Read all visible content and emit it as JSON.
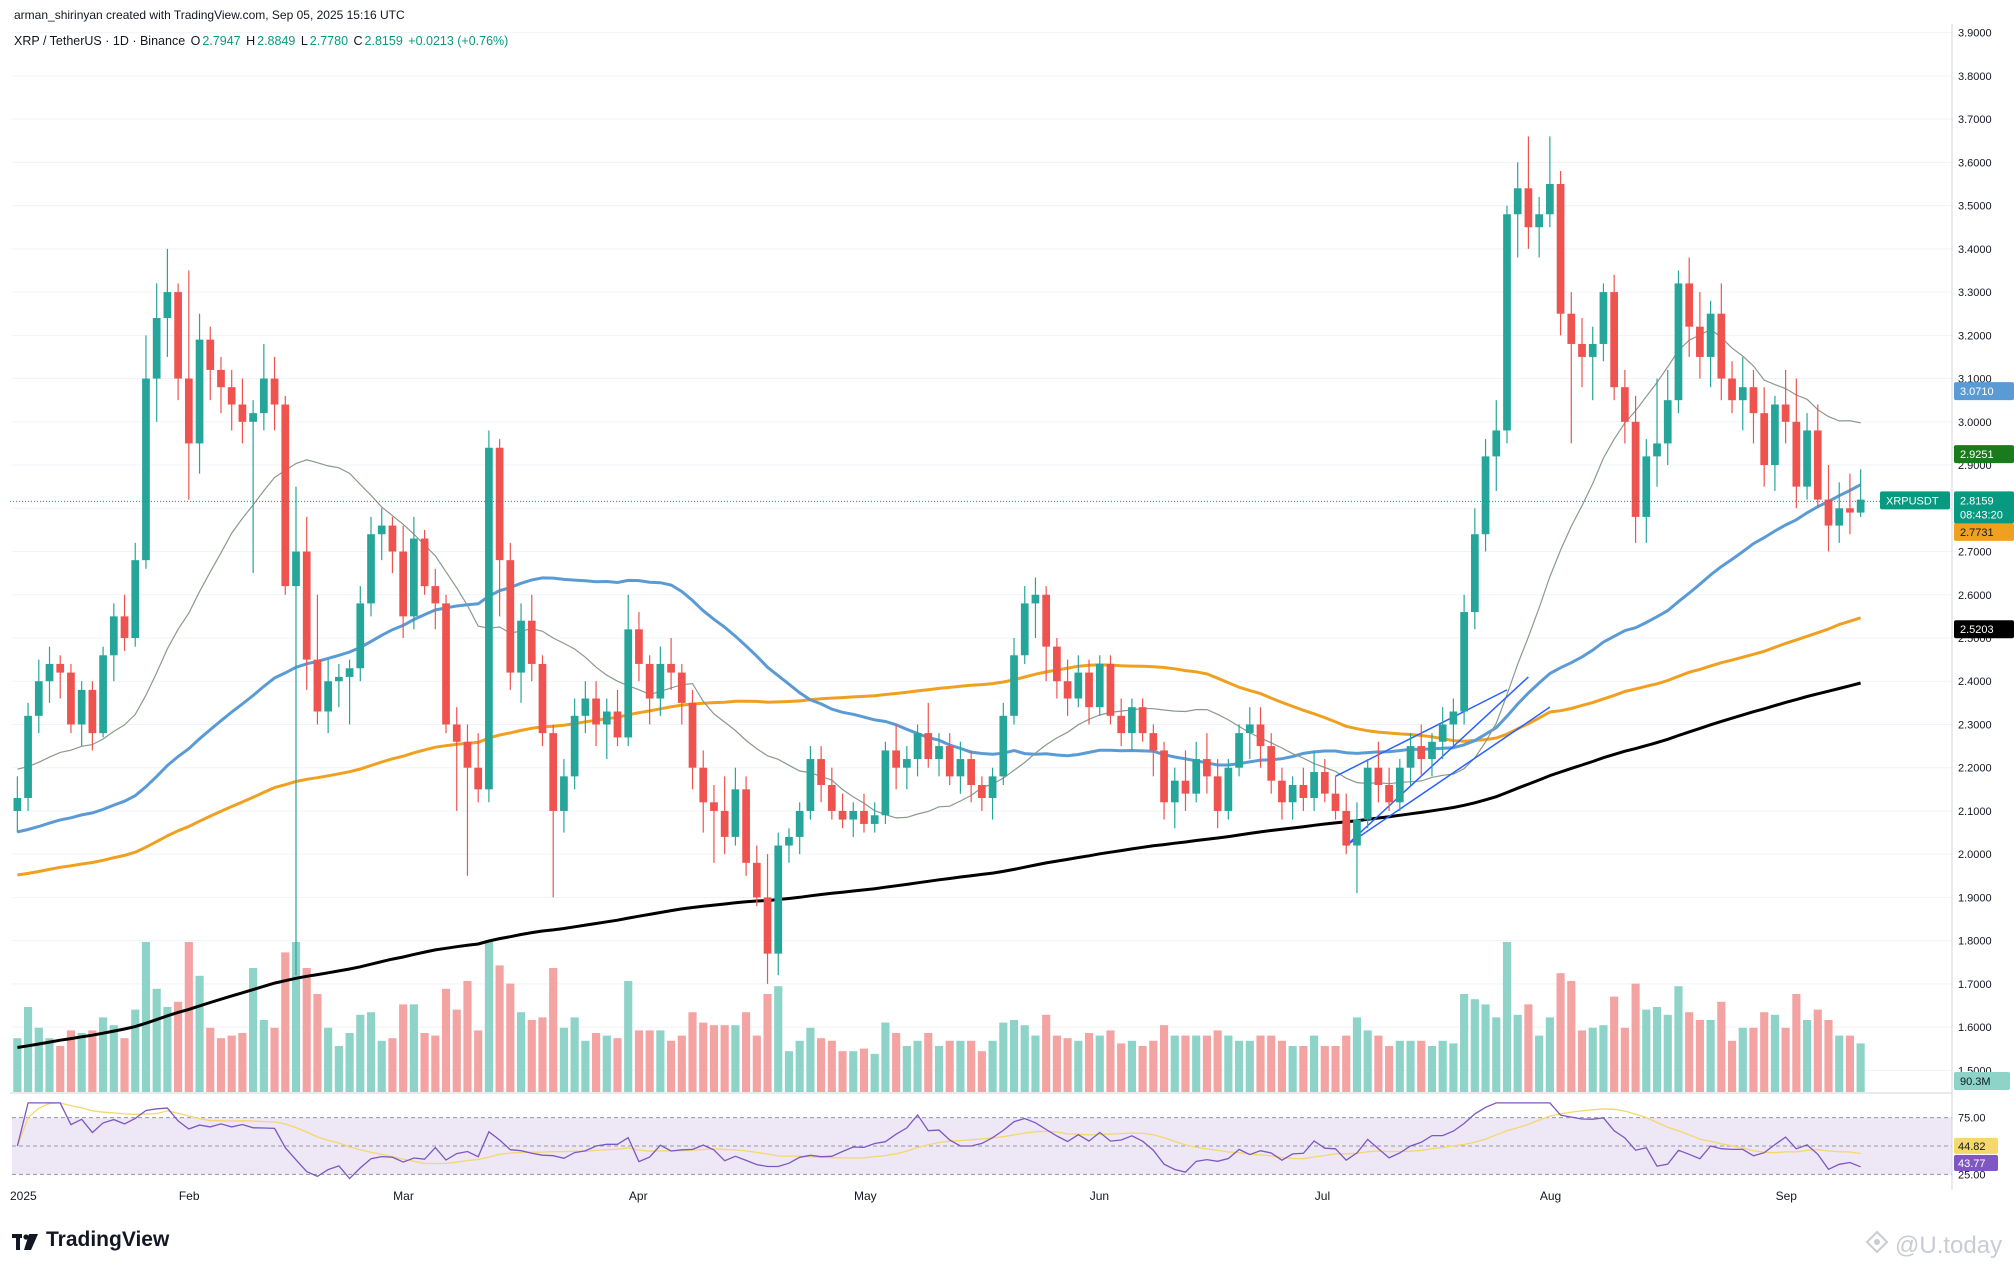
{
  "header": {
    "created_by": "arman_shirinyan created with TradingView.com, Sep 05, 2025 15:16 UTC"
  },
  "legend": {
    "symbol": "XRP / TetherUS · 1D · Binance",
    "open_label": "O",
    "open": "2.7947",
    "high_label": "H",
    "high": "2.8849",
    "low_label": "L",
    "low": "2.7780",
    "close_label": "C",
    "close": "2.8159",
    "change": "+0.0213 (+0.76%)"
  },
  "colors": {
    "up": "#089981",
    "down": "#f23645",
    "up_body": "#26a69a",
    "down_body": "#ef5350",
    "vol_up": "#8dd3c7",
    "vol_down": "#f4a3a3",
    "ma_blue": "#5b9bd5",
    "ma_orange": "#f0a020",
    "ma_black": "#000000",
    "ma_thin": "#8a9a8a",
    "rsi": "#7e57c2",
    "rsi_ma": "#f5d76e",
    "rsi_band": "#ede7f6"
  },
  "footer": {
    "brand": "TradingView",
    "watermark": "@U.today"
  },
  "price_tags": {
    "ma_blue": "3.0710",
    "ma_thin": "2.9251",
    "symbol": "XRPUSDT",
    "last": "2.8159",
    "countdown": "08:43:20",
    "ma_orange": "2.7731",
    "ma_black": "2.5203",
    "volume": "90.3M",
    "rsi_ma": "44.82",
    "rsi": "43.77"
  },
  "chart_data": {
    "type": "candlestick",
    "symbol": "XRP / TetherUS",
    "interval": "1D",
    "exchange": "Binance",
    "price_axis": {
      "range": [
        1.45,
        3.92
      ],
      "ticks": [
        "3.9000",
        "3.8000",
        "3.7000",
        "3.6000",
        "3.5000",
        "3.4000",
        "3.3000",
        "3.2000",
        "3.1000",
        "3.0000",
        "2.9000",
        "2.8000",
        "2.7000",
        "2.6000",
        "2.5000",
        "2.4000",
        "2.3000",
        "2.2000",
        "2.1000",
        "2.0000",
        "1.9000",
        "1.8000",
        "1.7000",
        "1.6000",
        "1.5000"
      ]
    },
    "rsi_axis": {
      "ticks": [
        "75.00",
        "25.00"
      ]
    },
    "date_ticks": [
      "2025",
      "Feb",
      "Mar",
      "Apr",
      "May",
      "Jun",
      "Jul",
      "Aug",
      "Sep"
    ],
    "candles": [
      [
        2.1,
        2.18,
        2.05,
        2.13
      ],
      [
        2.13,
        2.35,
        2.1,
        2.32
      ],
      [
        2.32,
        2.45,
        2.28,
        2.4
      ],
      [
        2.4,
        2.48,
        2.35,
        2.44
      ],
      [
        2.44,
        2.46,
        2.36,
        2.42
      ],
      [
        2.42,
        2.44,
        2.28,
        2.3
      ],
      [
        2.3,
        2.4,
        2.25,
        2.38
      ],
      [
        2.38,
        2.4,
        2.24,
        2.28
      ],
      [
        2.28,
        2.48,
        2.27,
        2.46
      ],
      [
        2.46,
        2.58,
        2.4,
        2.55
      ],
      [
        2.55,
        2.6,
        2.47,
        2.5
      ],
      [
        2.5,
        2.72,
        2.48,
        2.68
      ],
      [
        2.68,
        3.2,
        2.66,
        3.1
      ],
      [
        3.1,
        3.32,
        3.0,
        3.24
      ],
      [
        3.24,
        3.4,
        3.15,
        3.3
      ],
      [
        3.3,
        3.32,
        3.05,
        3.1
      ],
      [
        3.1,
        3.35,
        2.82,
        2.95
      ],
      [
        2.95,
        3.25,
        2.88,
        3.19
      ],
      [
        3.19,
        3.22,
        3.05,
        3.12
      ],
      [
        3.12,
        3.15,
        3.02,
        3.08
      ],
      [
        3.08,
        3.12,
        2.98,
        3.04
      ],
      [
        3.04,
        3.1,
        2.95,
        3.0
      ],
      [
        3.0,
        3.05,
        2.65,
        3.02
      ],
      [
        3.02,
        3.18,
        2.98,
        3.1
      ],
      [
        3.1,
        3.15,
        2.98,
        3.04
      ],
      [
        3.04,
        3.06,
        2.6,
        2.62
      ],
      [
        2.62,
        2.85,
        1.72,
        2.7
      ],
      [
        2.7,
        2.78,
        2.38,
        2.45
      ],
      [
        2.45,
        2.6,
        2.3,
        2.33
      ],
      [
        2.33,
        2.45,
        2.28,
        2.4
      ],
      [
        2.4,
        2.44,
        2.34,
        2.41
      ],
      [
        2.41,
        2.45,
        2.3,
        2.43
      ],
      [
        2.43,
        2.62,
        2.4,
        2.58
      ],
      [
        2.58,
        2.78,
        2.55,
        2.74
      ],
      [
        2.74,
        2.8,
        2.68,
        2.76
      ],
      [
        2.76,
        2.78,
        2.65,
        2.7
      ],
      [
        2.7,
        2.76,
        2.5,
        2.55
      ],
      [
        2.55,
        2.78,
        2.52,
        2.73
      ],
      [
        2.73,
        2.75,
        2.6,
        2.62
      ],
      [
        2.62,
        2.66,
        2.52,
        2.58
      ],
      [
        2.58,
        2.6,
        2.28,
        2.3
      ],
      [
        2.3,
        2.34,
        2.1,
        2.26
      ],
      [
        2.26,
        2.3,
        1.95,
        2.2
      ],
      [
        2.2,
        2.28,
        2.12,
        2.15
      ],
      [
        2.15,
        2.98,
        2.12,
        2.94
      ],
      [
        2.94,
        2.96,
        2.55,
        2.68
      ],
      [
        2.68,
        2.72,
        2.38,
        2.42
      ],
      [
        2.42,
        2.58,
        2.35,
        2.54
      ],
      [
        2.54,
        2.6,
        2.4,
        2.44
      ],
      [
        2.44,
        2.46,
        2.25,
        2.28
      ],
      [
        2.28,
        2.3,
        1.9,
        2.1
      ],
      [
        2.1,
        2.22,
        2.05,
        2.18
      ],
      [
        2.18,
        2.36,
        2.15,
        2.32
      ],
      [
        2.32,
        2.4,
        2.28,
        2.36
      ],
      [
        2.36,
        2.4,
        2.25,
        2.3
      ],
      [
        2.3,
        2.36,
        2.22,
        2.33
      ],
      [
        2.33,
        2.38,
        2.25,
        2.27
      ],
      [
        2.27,
        2.6,
        2.25,
        2.52
      ],
      [
        2.52,
        2.56,
        2.4,
        2.44
      ],
      [
        2.44,
        2.46,
        2.3,
        2.36
      ],
      [
        2.36,
        2.48,
        2.32,
        2.44
      ],
      [
        2.44,
        2.5,
        2.38,
        2.42
      ],
      [
        2.42,
        2.44,
        2.3,
        2.35
      ],
      [
        2.35,
        2.38,
        2.15,
        2.2
      ],
      [
        2.2,
        2.24,
        2.05,
        2.12
      ],
      [
        2.12,
        2.16,
        1.98,
        2.1
      ],
      [
        2.1,
        2.18,
        2.0,
        2.04
      ],
      [
        2.04,
        2.2,
        2.02,
        2.15
      ],
      [
        2.15,
        2.18,
        1.95,
        1.98
      ],
      [
        1.98,
        2.02,
        1.88,
        1.9
      ],
      [
        1.9,
        2.0,
        1.7,
        1.77
      ],
      [
        1.77,
        2.05,
        1.72,
        2.02
      ],
      [
        2.02,
        2.06,
        1.98,
        2.04
      ],
      [
        2.04,
        2.12,
        2.0,
        2.1
      ],
      [
        2.1,
        2.25,
        2.08,
        2.22
      ],
      [
        2.22,
        2.25,
        2.12,
        2.16
      ],
      [
        2.16,
        2.2,
        2.08,
        2.1
      ],
      [
        2.1,
        2.14,
        2.06,
        2.08
      ],
      [
        2.08,
        2.12,
        2.04,
        2.1
      ],
      [
        2.1,
        2.14,
        2.05,
        2.07
      ],
      [
        2.07,
        2.12,
        2.05,
        2.09
      ],
      [
        2.09,
        2.26,
        2.07,
        2.24
      ],
      [
        2.24,
        2.3,
        2.15,
        2.2
      ],
      [
        2.2,
        2.25,
        2.15,
        2.22
      ],
      [
        2.22,
        2.3,
        2.18,
        2.28
      ],
      [
        2.28,
        2.35,
        2.2,
        2.22
      ],
      [
        2.22,
        2.28,
        2.18,
        2.25
      ],
      [
        2.25,
        2.28,
        2.16,
        2.18
      ],
      [
        2.18,
        2.26,
        2.14,
        2.22
      ],
      [
        2.22,
        2.24,
        2.12,
        2.16
      ],
      [
        2.16,
        2.18,
        2.1,
        2.13
      ],
      [
        2.13,
        2.2,
        2.08,
        2.18
      ],
      [
        2.18,
        2.35,
        2.16,
        2.32
      ],
      [
        2.32,
        2.5,
        2.3,
        2.46
      ],
      [
        2.46,
        2.62,
        2.44,
        2.58
      ],
      [
        2.58,
        2.64,
        2.5,
        2.6
      ],
      [
        2.6,
        2.62,
        2.4,
        2.48
      ],
      [
        2.48,
        2.5,
        2.36,
        2.4
      ],
      [
        2.4,
        2.45,
        2.32,
        2.36
      ],
      [
        2.36,
        2.46,
        2.34,
        2.42
      ],
      [
        2.42,
        2.45,
        2.3,
        2.34
      ],
      [
        2.34,
        2.46,
        2.32,
        2.44
      ],
      [
        2.44,
        2.46,
        2.3,
        2.32
      ],
      [
        2.32,
        2.36,
        2.25,
        2.28
      ],
      [
        2.28,
        2.36,
        2.24,
        2.34
      ],
      [
        2.34,
        2.36,
        2.26,
        2.28
      ],
      [
        2.28,
        2.3,
        2.18,
        2.24
      ],
      [
        2.24,
        2.26,
        2.08,
        2.12
      ],
      [
        2.12,
        2.2,
        2.06,
        2.17
      ],
      [
        2.17,
        2.24,
        2.1,
        2.14
      ],
      [
        2.14,
        2.26,
        2.12,
        2.22
      ],
      [
        2.22,
        2.28,
        2.14,
        2.18
      ],
      [
        2.18,
        2.22,
        2.06,
        2.1
      ],
      [
        2.1,
        2.22,
        2.08,
        2.2
      ],
      [
        2.2,
        2.3,
        2.18,
        2.28
      ],
      [
        2.28,
        2.34,
        2.22,
        2.3
      ],
      [
        2.3,
        2.34,
        2.2,
        2.25
      ],
      [
        2.25,
        2.28,
        2.14,
        2.17
      ],
      [
        2.17,
        2.2,
        2.08,
        2.12
      ],
      [
        2.12,
        2.18,
        2.08,
        2.16
      ],
      [
        2.16,
        2.2,
        2.1,
        2.13
      ],
      [
        2.13,
        2.24,
        2.1,
        2.19
      ],
      [
        2.19,
        2.22,
        2.12,
        2.14
      ],
      [
        2.14,
        2.18,
        2.08,
        2.1
      ],
      [
        2.1,
        2.14,
        2.0,
        2.02
      ],
      [
        2.02,
        2.12,
        1.91,
        2.08
      ],
      [
        2.08,
        2.22,
        2.06,
        2.2
      ],
      [
        2.2,
        2.26,
        2.12,
        2.16
      ],
      [
        2.16,
        2.2,
        2.1,
        2.12
      ],
      [
        2.12,
        2.22,
        2.1,
        2.2
      ],
      [
        2.2,
        2.28,
        2.16,
        2.25
      ],
      [
        2.25,
        2.3,
        2.18,
        2.22
      ],
      [
        2.22,
        2.28,
        2.18,
        2.26
      ],
      [
        2.26,
        2.34,
        2.22,
        2.3
      ],
      [
        2.3,
        2.36,
        2.25,
        2.33
      ],
      [
        2.33,
        2.6,
        2.3,
        2.56
      ],
      [
        2.56,
        2.8,
        2.52,
        2.74
      ],
      [
        2.74,
        2.96,
        2.7,
        2.92
      ],
      [
        2.92,
        3.05,
        2.84,
        2.98
      ],
      [
        2.98,
        3.5,
        2.95,
        3.48
      ],
      [
        3.48,
        3.6,
        3.38,
        3.54
      ],
      [
        3.54,
        3.66,
        3.4,
        3.45
      ],
      [
        3.45,
        3.52,
        3.38,
        3.48
      ],
      [
        3.48,
        3.66,
        3.45,
        3.55
      ],
      [
        3.55,
        3.58,
        3.2,
        3.25
      ],
      [
        3.25,
        3.3,
        2.95,
        3.18
      ],
      [
        3.18,
        3.24,
        3.08,
        3.15
      ],
      [
        3.15,
        3.22,
        3.05,
        3.18
      ],
      [
        3.18,
        3.32,
        3.14,
        3.3
      ],
      [
        3.3,
        3.34,
        3.05,
        3.08
      ],
      [
        3.08,
        3.12,
        2.95,
        3.0
      ],
      [
        3.0,
        3.06,
        2.72,
        2.78
      ],
      [
        2.78,
        2.96,
        2.72,
        2.92
      ],
      [
        2.92,
        3.1,
        2.85,
        2.95
      ],
      [
        2.95,
        3.12,
        2.9,
        3.05
      ],
      [
        3.05,
        3.35,
        3.02,
        3.32
      ],
      [
        3.32,
        3.38,
        3.15,
        3.22
      ],
      [
        3.22,
        3.3,
        3.1,
        3.15
      ],
      [
        3.15,
        3.28,
        3.08,
        3.25
      ],
      [
        3.25,
        3.32,
        3.05,
        3.1
      ],
      [
        3.1,
        3.14,
        3.02,
        3.05
      ],
      [
        3.05,
        3.15,
        2.98,
        3.08
      ],
      [
        3.08,
        3.12,
        2.95,
        3.02
      ],
      [
        3.02,
        3.08,
        2.85,
        2.9
      ],
      [
        2.9,
        3.06,
        2.84,
        3.04
      ],
      [
        3.04,
        3.12,
        2.95,
        3.0
      ],
      [
        3.0,
        3.1,
        2.8,
        2.85
      ],
      [
        2.85,
        3.02,
        2.82,
        2.98
      ],
      [
        2.98,
        3.04,
        2.8,
        2.82
      ],
      [
        2.82,
        2.9,
        2.7,
        2.76
      ],
      [
        2.76,
        2.86,
        2.72,
        2.8
      ],
      [
        2.8,
        2.88,
        2.74,
        2.79
      ],
      [
        2.79,
        2.89,
        2.78,
        2.82
      ]
    ],
    "volume_axis": {
      "last": "90.3M"
    },
    "series": [
      {
        "values_last": 3.071
      },
      {
        "values_last": 2.9251
      },
      {
        "values_last": 2.7731
      },
      {
        "values_last": 2.5203
      }
    ],
    "annotations": [
      {
        "type": "rising-channel",
        "from_date": "late Jun",
        "to_date": "mid Jul"
      }
    ]
  }
}
